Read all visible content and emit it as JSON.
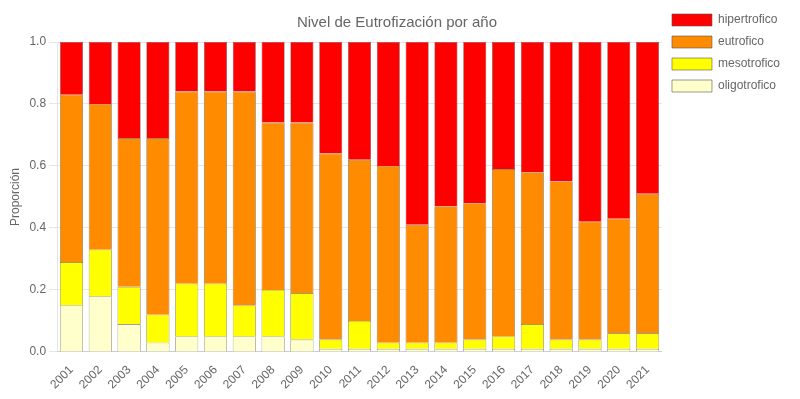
{
  "chart_data": {
    "type": "bar",
    "title": "Nivel de Eutrofización por año",
    "ylabel": "Proporción",
    "categories": [
      "2001",
      "2002",
      "2003",
      "2004",
      "2005",
      "2006",
      "2007",
      "2008",
      "2009",
      "2010",
      "2011",
      "2012",
      "2013",
      "2014",
      "2015",
      "2016",
      "2017",
      "2018",
      "2019",
      "2020",
      "2021"
    ],
    "series": [
      {
        "name": "oligotrofico",
        "color": "#FFFFCC",
        "values": [
          0.15,
          0.18,
          0.09,
          0.03,
          0.05,
          0.05,
          0.05,
          0.05,
          0.04,
          0.01,
          0.01,
          0.01,
          0.01,
          0.01,
          0.01,
          0.01,
          0.01,
          0.01,
          0.01,
          0.01,
          0.01
        ]
      },
      {
        "name": "mesotrofico",
        "color": "#FFFF00",
        "values": [
          0.14,
          0.15,
          0.12,
          0.09,
          0.17,
          0.17,
          0.1,
          0.15,
          0.15,
          0.03,
          0.09,
          0.02,
          0.02,
          0.02,
          0.03,
          0.04,
          0.08,
          0.03,
          0.03,
          0.05,
          0.05
        ]
      },
      {
        "name": "eutrofico",
        "color": "#FF8C00",
        "values": [
          0.54,
          0.47,
          0.48,
          0.57,
          0.62,
          0.62,
          0.69,
          0.54,
          0.55,
          0.6,
          0.52,
          0.57,
          0.38,
          0.44,
          0.44,
          0.54,
          0.49,
          0.51,
          0.38,
          0.37,
          0.45
        ]
      },
      {
        "name": "hipertrofico",
        "color": "#FF0000",
        "values": [
          0.17,
          0.2,
          0.31,
          0.31,
          0.16,
          0.16,
          0.16,
          0.26,
          0.26,
          0.36,
          0.38,
          0.4,
          0.59,
          0.53,
          0.52,
          0.41,
          0.42,
          0.45,
          0.58,
          0.57,
          0.49
        ]
      }
    ],
    "stacked": true,
    "ylim": [
      0.0,
      1.0
    ],
    "yticks": [
      {
        "value": 0,
        "label": "0.0"
      },
      0.2,
      0.4,
      0.6,
      0.8,
      {
        "value": 1,
        "label": "1.0"
      }
    ],
    "grid": "y",
    "legend": "upper right"
  }
}
